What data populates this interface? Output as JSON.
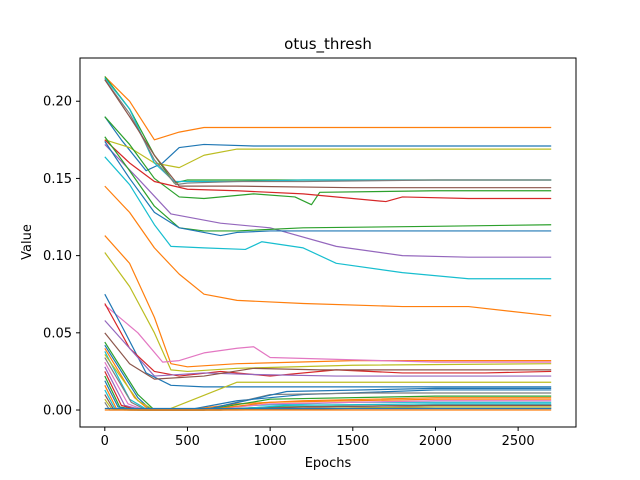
{
  "chart_data": {
    "type": "line",
    "title": "otus_thresh",
    "xlabel": "Epochs",
    "ylabel": "Value",
    "xlim": [
      -150,
      2850
    ],
    "ylim": [
      -0.011,
      0.228
    ],
    "xticks": [
      0,
      500,
      1000,
      1500,
      2000,
      2500
    ],
    "xtick_labels": [
      "0",
      "500",
      "1000",
      "1500",
      "2000",
      "2500"
    ],
    "yticks": [
      0.0,
      0.05,
      0.1,
      0.15,
      0.2
    ],
    "ytick_labels": [
      "0.00",
      "0.05",
      "0.10",
      "0.15",
      "0.20"
    ],
    "grid": false,
    "legend": "none",
    "series": [
      {
        "color": "#ff7f0e",
        "x": [
          0,
          150,
          300,
          450,
          600,
          800,
          1200,
          2000,
          2700
        ],
        "y": [
          0.216,
          0.2,
          0.175,
          0.18,
          0.183,
          0.183,
          0.183,
          0.183,
          0.183
        ]
      },
      {
        "color": "#1f77b4",
        "x": [
          0,
          100,
          250,
          350,
          450,
          600,
          900,
          1500,
          2700
        ],
        "y": [
          0.19,
          0.175,
          0.155,
          0.16,
          0.17,
          0.172,
          0.171,
          0.171,
          0.171
        ]
      },
      {
        "color": "#bcbd22",
        "x": [
          0,
          150,
          300,
          450,
          600,
          800,
          1200,
          2000,
          2700
        ],
        "y": [
          0.175,
          0.17,
          0.16,
          0.157,
          0.165,
          0.169,
          0.169,
          0.169,
          0.169
        ]
      },
      {
        "color": "#2ca02c",
        "x": [
          0,
          150,
          300,
          420,
          500,
          800,
          1200,
          2000,
          2700
        ],
        "y": [
          0.216,
          0.195,
          0.165,
          0.147,
          0.149,
          0.149,
          0.149,
          0.149,
          0.149
        ]
      },
      {
        "color": "#17becf",
        "x": [
          0,
          150,
          300,
          420,
          500,
          800,
          1200,
          2000,
          2700
        ],
        "y": [
          0.215,
          0.195,
          0.16,
          0.148,
          0.148,
          0.148,
          0.149,
          0.149,
          0.149
        ]
      },
      {
        "color": "#7f7f7f",
        "x": [
          0,
          150,
          300,
          430,
          500,
          800,
          1200,
          2000,
          2700
        ],
        "y": [
          0.214,
          0.192,
          0.162,
          0.146,
          0.147,
          0.148,
          0.148,
          0.149,
          0.149
        ]
      },
      {
        "color": "#2ca02c",
        "x": [
          0,
          150,
          300,
          450,
          600,
          900,
          1150,
          1250,
          1300,
          2000,
          2700
        ],
        "y": [
          0.19,
          0.172,
          0.15,
          0.138,
          0.137,
          0.14,
          0.138,
          0.133,
          0.141,
          0.142,
          0.142
        ]
      },
      {
        "color": "#d62728",
        "x": [
          0,
          150,
          300,
          500,
          800,
          1200,
          1700,
          1800,
          2200,
          2700
        ],
        "y": [
          0.175,
          0.16,
          0.148,
          0.143,
          0.142,
          0.14,
          0.135,
          0.138,
          0.137,
          0.137
        ]
      },
      {
        "color": "#8c564b",
        "x": [
          0,
          150,
          300,
          450,
          800,
          1500,
          2700
        ],
        "y": [
          0.214,
          0.19,
          0.165,
          0.145,
          0.145,
          0.144,
          0.144
        ]
      },
      {
        "color": "#9467bd",
        "x": [
          0,
          200,
          400,
          700,
          1000,
          1400,
          1800,
          2200,
          2700
        ],
        "y": [
          0.172,
          0.15,
          0.127,
          0.121,
          0.118,
          0.106,
          0.1,
          0.099,
          0.099
        ]
      },
      {
        "color": "#2ca02c",
        "x": [
          0,
          150,
          300,
          450,
          600,
          800,
          1200,
          2000,
          2700
        ],
        "y": [
          0.177,
          0.155,
          0.132,
          0.118,
          0.116,
          0.116,
          0.118,
          0.119,
          0.12
        ]
      },
      {
        "color": "#1f77b4",
        "x": [
          0,
          150,
          300,
          450,
          700,
          800,
          1000,
          1500,
          2000,
          2700
        ],
        "y": [
          0.174,
          0.15,
          0.128,
          0.118,
          0.113,
          0.115,
          0.116,
          0.116,
          0.116,
          0.116
        ]
      },
      {
        "color": "#17becf",
        "x": [
          0,
          150,
          300,
          400,
          600,
          850,
          950,
          1200,
          1400,
          1800,
          2200,
          2700
        ],
        "y": [
          0.164,
          0.146,
          0.12,
          0.106,
          0.105,
          0.104,
          0.109,
          0.105,
          0.095,
          0.089,
          0.085,
          0.085
        ]
      },
      {
        "color": "#ff7f0e",
        "x": [
          0,
          150,
          300,
          450,
          600,
          800,
          1200,
          1800,
          2200,
          2700
        ],
        "y": [
          0.145,
          0.128,
          0.105,
          0.088,
          0.075,
          0.071,
          0.069,
          0.067,
          0.067,
          0.061
        ]
      },
      {
        "color": "#ff7f0e",
        "x": [
          0,
          150,
          300,
          400,
          500,
          800,
          1500,
          2700
        ],
        "y": [
          0.113,
          0.095,
          0.06,
          0.03,
          0.028,
          0.03,
          0.032,
          0.032
        ]
      },
      {
        "color": "#bcbd22",
        "x": [
          0,
          150,
          300,
          400,
          500,
          800,
          1500,
          2700
        ],
        "y": [
          0.102,
          0.08,
          0.05,
          0.026,
          0.025,
          0.027,
          0.029,
          0.03
        ]
      },
      {
        "color": "#e377c2",
        "x": [
          0,
          200,
          350,
          450,
          600,
          800,
          900,
          1000,
          2000,
          2700
        ],
        "y": [
          0.068,
          0.05,
          0.031,
          0.032,
          0.037,
          0.04,
          0.041,
          0.034,
          0.031,
          0.031
        ]
      },
      {
        "color": "#1f77b4",
        "x": [
          0,
          100,
          250,
          400,
          600,
          1000,
          1500,
          2700
        ],
        "y": [
          0.075,
          0.055,
          0.024,
          0.016,
          0.015,
          0.015,
          0.015,
          0.015
        ]
      },
      {
        "color": "#d62728",
        "x": [
          0,
          150,
          300,
          450,
          700,
          1000,
          1400,
          1800,
          2300,
          2700
        ],
        "y": [
          0.069,
          0.04,
          0.025,
          0.022,
          0.025,
          0.022,
          0.026,
          0.024,
          0.024,
          0.025
        ]
      },
      {
        "color": "#9467bd",
        "x": [
          0,
          150,
          300,
          600,
          900,
          1400,
          2000,
          2700
        ],
        "y": [
          0.058,
          0.04,
          0.022,
          0.024,
          0.023,
          0.022,
          0.022,
          0.022
        ]
      },
      {
        "color": "#8c564b",
        "x": [
          0,
          150,
          300,
          600,
          900,
          1300,
          2000,
          2700
        ],
        "y": [
          0.05,
          0.03,
          0.02,
          0.022,
          0.027,
          0.026,
          0.026,
          0.026
        ]
      },
      {
        "color": "#2ca02c",
        "x": [
          0,
          200,
          300,
          600,
          1000,
          2000,
          2700
        ],
        "y": [
          0.044,
          0.01,
          0.0,
          0.0,
          0.002,
          0.003,
          0.003
        ]
      },
      {
        "color": "#1f77b4",
        "x": [
          0,
          200,
          280,
          500,
          800,
          1200,
          2000,
          2700
        ],
        "y": [
          0.042,
          0.008,
          0.0,
          0.0,
          0.006,
          0.01,
          0.013,
          0.013
        ]
      },
      {
        "color": "#ff7f0e",
        "x": [
          0,
          180,
          270,
          500,
          800,
          1200,
          2000,
          2700
        ],
        "y": [
          0.04,
          0.008,
          0.0,
          0.0,
          0.004,
          0.006,
          0.008,
          0.008
        ]
      },
      {
        "color": "#17becf",
        "x": [
          0,
          150,
          260,
          500,
          900,
          1500,
          2700
        ],
        "y": [
          0.038,
          0.007,
          0.0,
          0.0,
          0.003,
          0.005,
          0.005
        ]
      },
      {
        "color": "#bcbd22",
        "x": [
          0,
          200,
          300,
          400,
          800,
          1500,
          2700
        ],
        "y": [
          0.036,
          0.006,
          0.0,
          0.001,
          0.018,
          0.018,
          0.018
        ]
      },
      {
        "color": "#7f7f7f",
        "x": [
          0,
          160,
          250,
          600,
          1000,
          1600,
          2700
        ],
        "y": [
          0.034,
          0.005,
          0.0,
          0.0,
          0.01,
          0.011,
          0.011
        ]
      },
      {
        "color": "#e377c2",
        "x": [
          0,
          140,
          240,
          600,
          1000,
          2000,
          2700
        ],
        "y": [
          0.031,
          0.004,
          0.0,
          0.0,
          0.004,
          0.006,
          0.006
        ]
      },
      {
        "color": "#9467bd",
        "x": [
          0,
          120,
          230,
          600,
          1200,
          2000,
          2700
        ],
        "y": [
          0.028,
          0.003,
          0.0,
          0.0,
          0.002,
          0.003,
          0.003
        ]
      },
      {
        "color": "#d62728",
        "x": [
          0,
          100,
          200,
          500,
          1200,
          2000,
          2700
        ],
        "y": [
          0.025,
          0.003,
          0.0,
          0.0,
          0.001,
          0.002,
          0.002
        ]
      },
      {
        "color": "#2ca02c",
        "x": [
          0,
          90,
          200,
          600,
          1000,
          2000,
          2700
        ],
        "y": [
          0.022,
          0.002,
          0.0,
          0.0,
          0.007,
          0.009,
          0.009
        ]
      },
      {
        "color": "#1f77b4",
        "x": [
          0,
          80,
          180,
          600,
          1100,
          2000,
          2700
        ],
        "y": [
          0.019,
          0.002,
          0.0,
          0.0,
          0.012,
          0.014,
          0.014
        ]
      },
      {
        "color": "#ff7f0e",
        "x": [
          0,
          70,
          160,
          600,
          1000,
          2000,
          2700
        ],
        "y": [
          0.016,
          0.001,
          0.0,
          0.0,
          0.005,
          0.007,
          0.007
        ]
      },
      {
        "color": "#17becf",
        "x": [
          0,
          60,
          150,
          700,
          1100,
          2000,
          2700
        ],
        "y": [
          0.013,
          0.001,
          0.0,
          0.0,
          0.003,
          0.004,
          0.004
        ]
      },
      {
        "color": "#8c564b",
        "x": [
          0,
          50,
          140,
          700,
          1200,
          2000,
          2700
        ],
        "y": [
          0.01,
          0.001,
          0.0,
          0.0,
          0.002,
          0.003,
          0.003
        ]
      },
      {
        "color": "#bcbd22",
        "x": [
          0,
          40,
          120,
          700,
          1200,
          2000,
          2700
        ],
        "y": [
          0.007,
          0.001,
          0.0,
          0.0,
          0.001,
          0.002,
          0.002
        ]
      },
      {
        "color": "#7f7f7f",
        "x": [
          0,
          30,
          100,
          800,
          1500,
          2700
        ],
        "y": [
          0.005,
          0.0,
          0.0,
          0.0,
          0.001,
          0.001
        ]
      },
      {
        "color": "#ff7f0e",
        "x": [
          0,
          500,
          1000,
          2000,
          2700
        ],
        "y": [
          0.0,
          0.0,
          0.0,
          0.0,
          0.0
        ]
      },
      {
        "color": "#1f77b4",
        "x": [
          0,
          500,
          1000,
          2000,
          2700
        ],
        "y": [
          0.001,
          0.001,
          0.001,
          0.001,
          0.001
        ]
      }
    ]
  }
}
